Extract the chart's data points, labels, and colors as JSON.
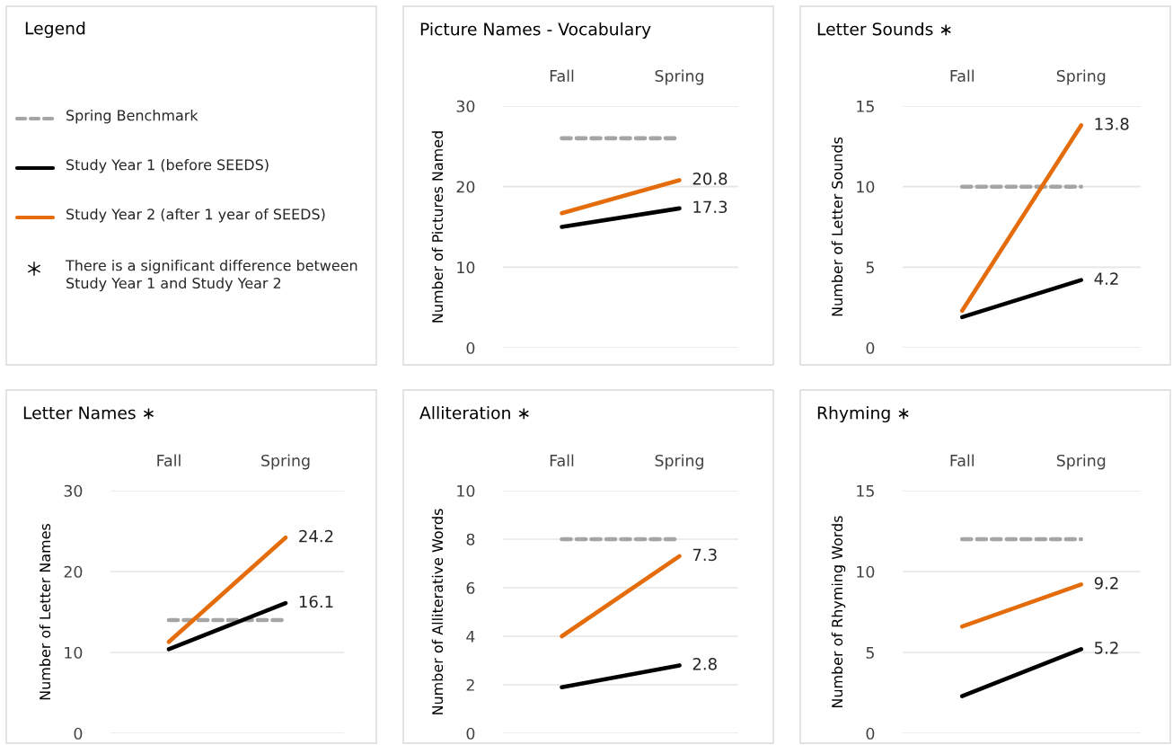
{
  "chart_data": [
    {
      "type": "other",
      "title": "Legend",
      "legend": "left",
      "series": [
        {
          "name": "Spring Benchmark",
          "color": "#a5a5a5",
          "line_style": "dashed"
        },
        {
          "name": "Study Year 1 (before SEEDS)",
          "color": "#000000",
          "line_style": "solid"
        },
        {
          "name": "Study Year 2 (after 1 year of SEEDS)",
          "color": "#e46c0a",
          "line_style": "solid"
        },
        {
          "name": "There is a significant difference between Study Year 1 and Study Year 2",
          "color": "#000000",
          "marker": "star"
        }
      ]
    },
    {
      "type": "line",
      "title": "Picture Names - Vocabulary",
      "ylabel": "Number of Pictures Named",
      "categories": [
        "Fall",
        "Spring"
      ],
      "ylim": [
        0,
        30
      ],
      "yticks": [
        0,
        10,
        20,
        30
      ],
      "grid": "y",
      "series": [
        {
          "color": "#a5a5a5",
          "line_style": "dashed",
          "values": [
            26,
            26
          ]
        },
        {
          "color": "#000000",
          "line_style": "solid",
          "values": [
            15.0,
            17.3
          ],
          "value_labels": [
            null,
            "17.3"
          ]
        },
        {
          "color": "#e46c0a",
          "line_style": "solid",
          "values": [
            16.7,
            20.8
          ],
          "value_labels": [
            null,
            "20.8"
          ]
        }
      ]
    },
    {
      "type": "line",
      "title": "Letter Sounds ∗",
      "ylabel": "Number of Letter Sounds",
      "categories": [
        "Fall",
        "Spring"
      ],
      "ylim": [
        0,
        15
      ],
      "yticks": [
        0,
        5,
        10,
        15
      ],
      "grid": "y",
      "series": [
        {
          "color": "#a5a5a5",
          "line_style": "dashed",
          "values": [
            10,
            10
          ]
        },
        {
          "color": "#000000",
          "line_style": "solid",
          "values": [
            1.9,
            4.2
          ],
          "value_labels": [
            null,
            "4.2"
          ]
        },
        {
          "color": "#e46c0a",
          "line_style": "solid",
          "values": [
            2.3,
            13.8
          ],
          "value_labels": [
            null,
            "13.8"
          ]
        }
      ]
    },
    {
      "type": "line",
      "title": "Letter Names ∗",
      "ylabel": "Number of Letter Names",
      "categories": [
        "Fall",
        "Spring"
      ],
      "ylim": [
        0,
        30
      ],
      "yticks": [
        0,
        10,
        20,
        30
      ],
      "grid": "y",
      "series": [
        {
          "color": "#a5a5a5",
          "line_style": "dashed",
          "values": [
            14,
            14
          ]
        },
        {
          "color": "#000000",
          "line_style": "solid",
          "values": [
            10.4,
            16.1
          ],
          "value_labels": [
            null,
            "16.1"
          ]
        },
        {
          "color": "#e46c0a",
          "line_style": "solid",
          "values": [
            11.3,
            24.2
          ],
          "value_labels": [
            null,
            "24.2"
          ]
        }
      ]
    },
    {
      "type": "line",
      "title": "Alliteration ∗",
      "ylabel": "Number of Alliterative Words",
      "categories": [
        "Fall",
        "Spring"
      ],
      "ylim": [
        0,
        10
      ],
      "yticks": [
        0,
        2,
        4,
        6,
        8,
        10
      ],
      "grid": "y",
      "series": [
        {
          "color": "#a5a5a5",
          "line_style": "dashed",
          "values": [
            8,
            8
          ]
        },
        {
          "color": "#000000",
          "line_style": "solid",
          "values": [
            1.9,
            2.8
          ],
          "value_labels": [
            null,
            "2.8"
          ]
        },
        {
          "color": "#e46c0a",
          "line_style": "solid",
          "values": [
            4.0,
            7.3
          ],
          "value_labels": [
            null,
            "7.3"
          ]
        }
      ]
    },
    {
      "type": "line",
      "title": "Rhyming ∗",
      "ylabel": "Number of Rhyming Words",
      "categories": [
        "Fall",
        "Spring"
      ],
      "ylim": [
        0,
        15
      ],
      "yticks": [
        0,
        5,
        10,
        15
      ],
      "grid": "y",
      "series": [
        {
          "color": "#a5a5a5",
          "line_style": "dashed",
          "values": [
            12,
            12
          ]
        },
        {
          "color": "#000000",
          "line_style": "solid",
          "values": [
            2.3,
            5.2
          ],
          "value_labels": [
            null,
            "5.2"
          ]
        },
        {
          "color": "#e46c0a",
          "line_style": "solid",
          "values": [
            6.6,
            9.2
          ],
          "value_labels": [
            null,
            "9.2"
          ]
        }
      ]
    }
  ]
}
